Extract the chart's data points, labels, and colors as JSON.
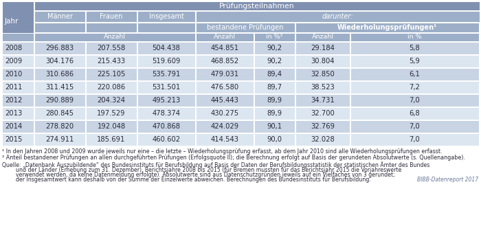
{
  "title_main": "Prüfungsteilnahmen",
  "darunter": "darunter:",
  "col_headers": [
    "Jahr",
    "Männer",
    "Frauen",
    "Insgesamt",
    "bestandene Prüfungen",
    "Wiederholungsprüfungen¹"
  ],
  "subheaders": [
    "Anzahl",
    "Anzahl",
    "in %²",
    "Anzahl",
    "in %"
  ],
  "data": [
    [
      "2008",
      "296.883",
      "207.558",
      "504.438",
      "454.851",
      "90,2",
      "29.184",
      "5,8"
    ],
    [
      "2009",
      "304.176",
      "215.433",
      "519.609",
      "468.852",
      "90,2",
      "30.804",
      "5,9"
    ],
    [
      "2010",
      "310.686",
      "225.105",
      "535.791",
      "479.031",
      "89,4",
      "32.850",
      "6,1"
    ],
    [
      "2011",
      "311.415",
      "220.086",
      "531.501",
      "476.580",
      "89,7",
      "38.523",
      "7,2"
    ],
    [
      "2012",
      "290.889",
      "204.324",
      "495.213",
      "445.443",
      "89,9",
      "34.731",
      "7,0"
    ],
    [
      "2013",
      "280.845",
      "197.529",
      "478.374",
      "430.275",
      "89,9",
      "32.700",
      "6,8"
    ],
    [
      "2014",
      "278.820",
      "192.048",
      "470.868",
      "424.029",
      "90,1",
      "32.769",
      "7,0"
    ],
    [
      "2015",
      "274.911",
      "185.691",
      "460.602",
      "414.543",
      "90,0",
      "32.028",
      "7,0"
    ]
  ],
  "footnote1": "¹ In den Jahren 2008 und 2009 wurde jeweils nur eine – die letzte – Wiederholungsprüfung erfasst, ab dem Jahr 2010 sind alle Wiederholungsprüfungen erfasst.",
  "footnote2": "² Anteil bestandener Prüfungen an allen durchgeführten Prüfungen (Erfolgsquote II); die Berechnung erfolgt auf Basis der gerundeten Absolutwerte (s. Quellenangabe).",
  "source_line1": "Quelle: „Datenbank Auszubildende“ des Bundesinstituts für Berufsbildung auf Basis der Daten der Berufsbildungsstatistik der statistischen Ämter des Bundes",
  "source_line2": "        und der Länder (Erhebung zum 31. Dezember), Berichtsjahre 2008 bis 2015 (für Bremen mussten für das Berichtsjahr 2015 die Vorjahreswerte",
  "source_line3": "        verwendet werden, da keine Datenmeldung erfolgte). Absolutwerte sind aus Datenschutzgründen jeweils auf ein Vielfaches von 3 gerundet;",
  "source_line4": "        der Insgesamtwert kann deshalb von der Summe der Einzelwerte abweichen. Berechnungen des Bundesinstituts für Berufsbildung.",
  "bibb_label": "BIBB-Datenreport 2017",
  "header_bg": "#8090b0",
  "subheader_bg": "#9dafc8",
  "row_bg_even": "#c8d4e3",
  "row_bg_odd": "#dce6f0",
  "border_color": "#ffffff",
  "text_color": "#2a2a3a",
  "header_text": "#ffffff",
  "fig_width": 7.0,
  "fig_height": 3.42
}
